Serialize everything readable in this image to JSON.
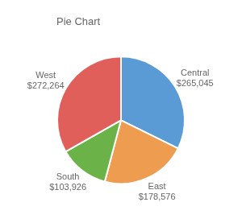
{
  "chart_data": {
    "type": "pie",
    "title": "Pie Chart",
    "categories": [
      "Central",
      "East",
      "South",
      "West"
    ],
    "values": [
      265045,
      178576,
      103926,
      272264
    ],
    "value_labels": [
      "$265,045",
      "$178,576",
      "$103,926",
      "$272,264"
    ],
    "colors": [
      "#5b9bd5",
      "#ed9c50",
      "#6bb348",
      "#e05f5a"
    ],
    "data_labels": true
  }
}
